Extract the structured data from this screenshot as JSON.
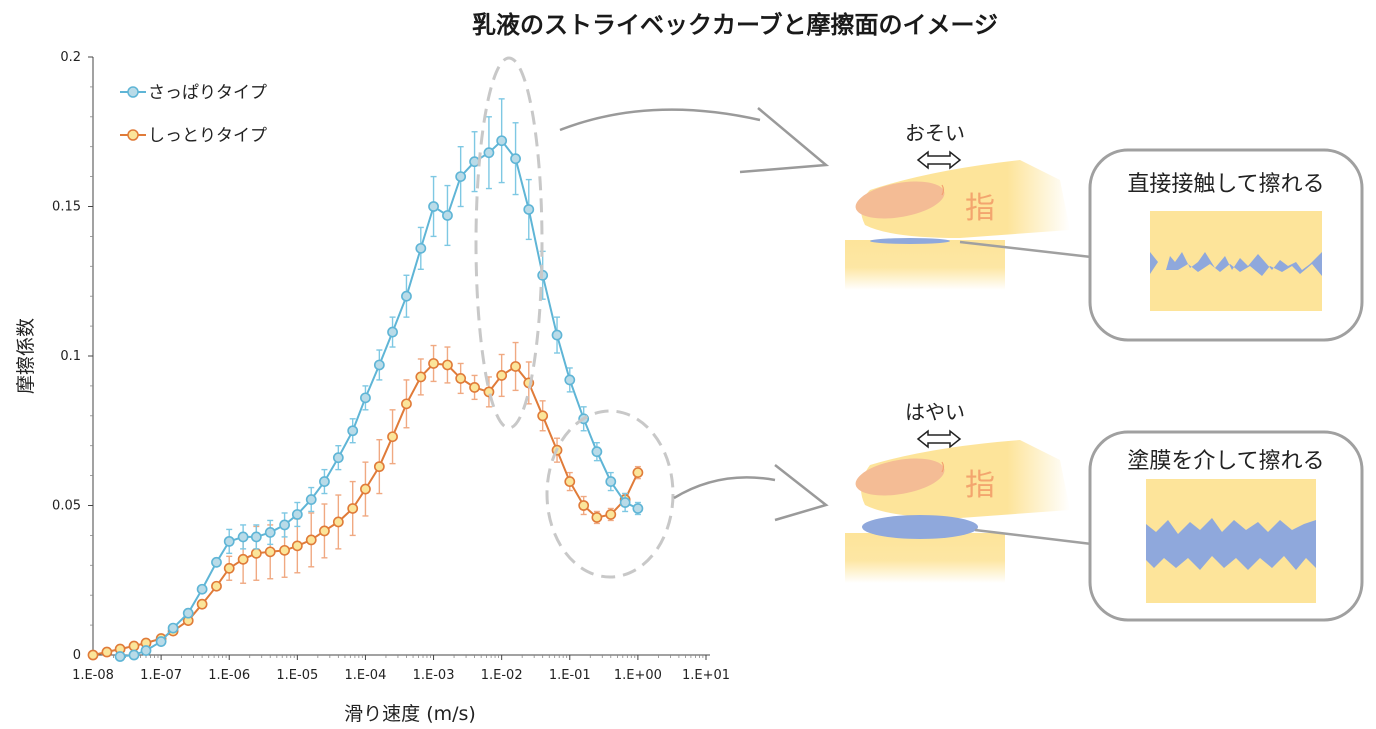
{
  "title": "乳液のストライベックカーブと摩擦面のイメージ",
  "chart_data": {
    "type": "line",
    "title": "乳液のストライベックカーブと摩擦面のイメージ",
    "xlabel": "滑り速度 (m/s)",
    "ylabel": "摩擦係数",
    "xscale": "log",
    "xlim": [
      1e-08,
      10
    ],
    "ylim": [
      0,
      0.2
    ],
    "x_tick_labels": [
      "1.E-08",
      "1.E-07",
      "1.E-06",
      "1.E-05",
      "1.E-04",
      "1.E-03",
      "1.E-02",
      "1.E-01",
      "1.E+00",
      "1.E+01"
    ],
    "y_tick_labels": [
      "0",
      "0.05",
      "0.1",
      "0.15",
      "0.2"
    ],
    "legend_position": "top-left",
    "series": [
      {
        "name": "さっぱりタイプ",
        "color": "#5fb5d6",
        "marker_fill": "#b9dbe8",
        "x": [
          2.5e-08,
          4e-08,
          6e-08,
          1e-07,
          1.5e-07,
          2.5e-07,
          4e-07,
          6.5e-07,
          1e-06,
          1.6e-06,
          2.5e-06,
          4e-06,
          6.5e-06,
          1e-05,
          1.6e-05,
          2.5e-05,
          4e-05,
          6.5e-05,
          0.0001,
          0.00016,
          0.00025,
          0.0004,
          0.00065,
          0.001,
          0.0016,
          0.0025,
          0.004,
          0.0065,
          0.01,
          0.016,
          0.025,
          0.04,
          0.065,
          0.1,
          0.16,
          0.25,
          0.4,
          0.65,
          1.0
        ],
        "y": [
          -0.0005,
          0.0,
          0.0015,
          0.0045,
          0.009,
          0.014,
          0.022,
          0.031,
          0.038,
          0.0395,
          0.0395,
          0.041,
          0.0435,
          0.047,
          0.052,
          0.058,
          0.066,
          0.075,
          0.086,
          0.097,
          0.108,
          0.12,
          0.136,
          0.15,
          0.147,
          0.16,
          0.165,
          0.168,
          0.172,
          0.166,
          0.149,
          0.127,
          0.107,
          0.092,
          0.079,
          0.068,
          0.058,
          0.051,
          0.049
        ],
        "err": [
          0,
          0,
          0,
          0,
          0,
          0,
          0,
          0,
          0.004,
          0.004,
          0.004,
          0.004,
          0.004,
          0.004,
          0.004,
          0.004,
          0.004,
          0.004,
          0.004,
          0.005,
          0.005,
          0.007,
          0.007,
          0.01,
          0.01,
          0.01,
          0.01,
          0.012,
          0.014,
          0.012,
          0.01,
          0.008,
          0.006,
          0.004,
          0.004,
          0.003,
          0.003,
          0.003,
          0.002
        ]
      },
      {
        "name": "しっとりタイプ",
        "color": "#e07b39",
        "marker_fill": "#fbe59a",
        "x": [
          1e-08,
          1.6e-08,
          2.5e-08,
          4e-08,
          6e-08,
          1e-07,
          1.5e-07,
          2.5e-07,
          4e-07,
          6.5e-07,
          1e-06,
          1.6e-06,
          2.5e-06,
          4e-06,
          6.5e-06,
          1e-05,
          1.6e-05,
          2.5e-05,
          4e-05,
          6.5e-05,
          0.0001,
          0.00016,
          0.00025,
          0.0004,
          0.00065,
          0.001,
          0.0016,
          0.0025,
          0.004,
          0.0065,
          0.01,
          0.016,
          0.025,
          0.04,
          0.065,
          0.1,
          0.16,
          0.25,
          0.4,
          0.65,
          1.0
        ],
        "y": [
          0.0,
          0.001,
          0.002,
          0.003,
          0.004,
          0.0055,
          0.008,
          0.0115,
          0.017,
          0.023,
          0.029,
          0.032,
          0.034,
          0.0345,
          0.035,
          0.0365,
          0.0385,
          0.0415,
          0.0445,
          0.049,
          0.0555,
          0.063,
          0.073,
          0.084,
          0.093,
          0.0975,
          0.097,
          0.0925,
          0.0895,
          0.088,
          0.0935,
          0.0965,
          0.091,
          0.08,
          0.0685,
          0.058,
          0.05,
          0.046,
          0.047,
          0.052,
          0.061
        ],
        "err": [
          0,
          0,
          0,
          0,
          0,
          0,
          0,
          0,
          0,
          0,
          0.004,
          0.008,
          0.009,
          0.009,
          0.009,
          0.009,
          0.009,
          0.009,
          0.009,
          0.009,
          0.009,
          0.009,
          0.009,
          0.008,
          0.006,
          0.006,
          0.006,
          0.005,
          0.004,
          0.005,
          0.007,
          0.008,
          0.007,
          0.005,
          0.004,
          0.003,
          0.003,
          0.002,
          0.002,
          0.002,
          0.002
        ]
      }
    ]
  },
  "illustration": {
    "top": {
      "speed_label": "おそい",
      "finger_label": "指",
      "bubble_text": "直接接触して擦れる"
    },
    "bottom": {
      "speed_label": "はやい",
      "finger_label": "指",
      "bubble_text": "塗膜を介して擦れる"
    }
  },
  "colors": {
    "skin": "#fde49a",
    "nail": "#f4bc95",
    "film": "#8fa8dc",
    "ellipse_dash": "#c8c8c8",
    "arrow": "#9a9a9a",
    "bubble_border": "#a0a0a0"
  }
}
